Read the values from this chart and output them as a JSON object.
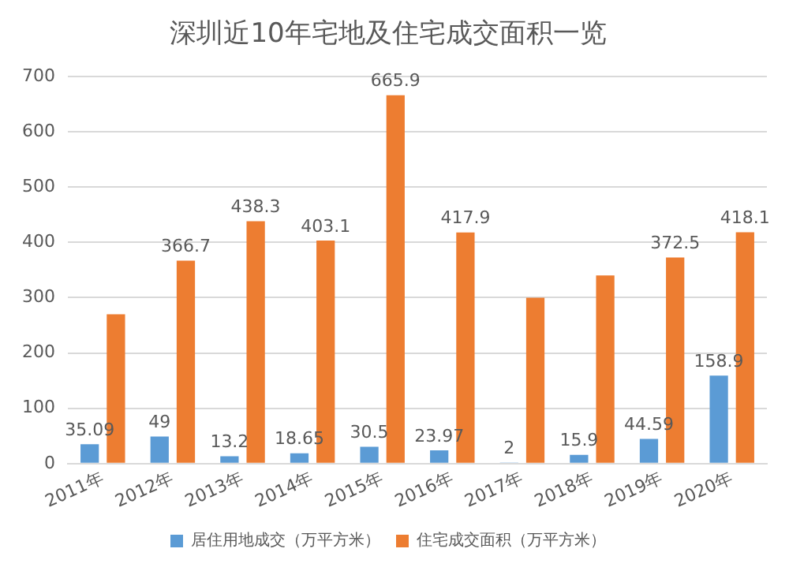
{
  "chart_data": {
    "type": "bar",
    "title": "深圳近10年宅地及住宅成交面积一览",
    "categories": [
      "2011年",
      "2012年",
      "2013年",
      "2014年",
      "2015年",
      "2016年",
      "2017年",
      "2018年",
      "2019年",
      "2020年"
    ],
    "series": [
      {
        "name": "居住用地成交（万平方米）",
        "color": "#5b9bd5",
        "values": [
          35.09,
          49,
          13.2,
          18.65,
          30.5,
          23.97,
          2,
          15.9,
          44.59,
          158.9
        ],
        "value_labels": [
          "35.09",
          "49",
          "13.2",
          "18.65",
          "30.5",
          "23.97",
          "2",
          "15.9",
          "44.59",
          "158.9"
        ]
      },
      {
        "name": "住宅成交面积（万平方米）",
        "color": "#ed7d31",
        "values": [
          270,
          366.7,
          438.3,
          403.1,
          665.9,
          417.9,
          300,
          340,
          372.5,
          418.1
        ],
        "value_labels": [
          null,
          "366.7",
          "438.3",
          "403.1",
          "665.9",
          "417.9",
          null,
          null,
          "372.5",
          "418.1"
        ]
      }
    ],
    "ylim": [
      0,
      700
    ],
    "yticks": [
      0,
      100,
      200,
      300,
      400,
      500,
      600,
      700
    ],
    "grid": "y",
    "legend": "bottom"
  }
}
